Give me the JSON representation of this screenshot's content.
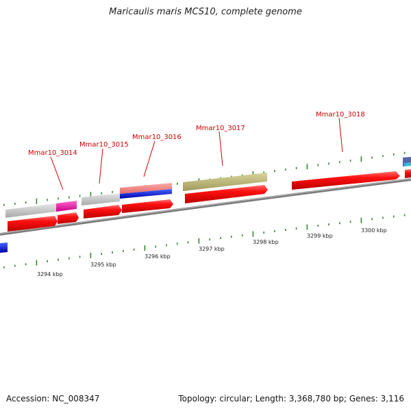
{
  "title": "Maricaulis maris MCS10, complete genome",
  "accession": "Accession: NC_008347",
  "topology": "Topology: circular; Length: 3,368,780 bp; Genes: 3,116",
  "colors": {
    "cds": "#ee0000",
    "backbone": "#888888",
    "tick": "#2a8a2a",
    "label": "#cc0000"
  },
  "gene_labels": [
    "Mmar10_3014",
    "Mmar10_3015",
    "Mmar10_3016",
    "Mmar10_3017",
    "Mmar10_3018"
  ],
  "scale_labels": [
    "3294 kbp",
    "3295 kbp",
    "3296 kbp",
    "3297 kbp",
    "3298 kbp",
    "3299 kbp",
    "3300 kbp"
  ]
}
